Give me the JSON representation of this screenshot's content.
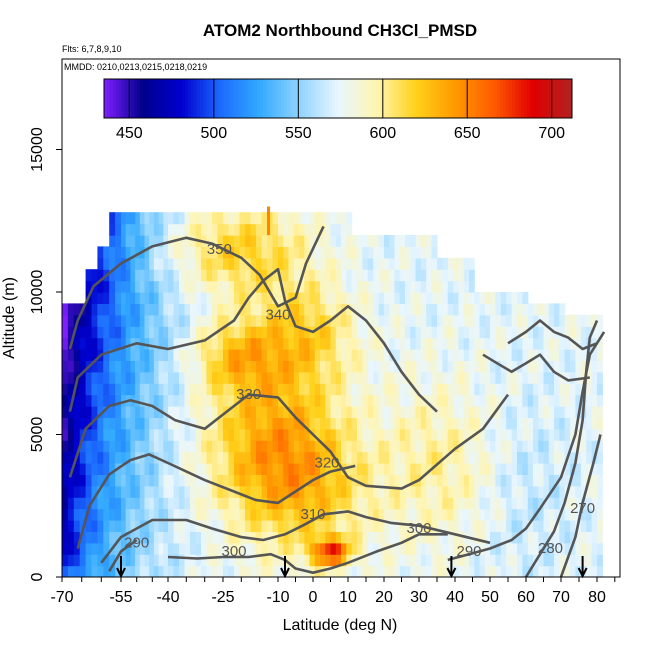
{
  "chart_data": {
    "type": "heatmap",
    "title": "ATOM2 Northbound CH3Cl_PMSD",
    "subtitle_lines": [
      "Flts: 6,7,8,9,10",
      "MMDD: 0210,0213,0215,0218,0219"
    ],
    "xlabel": "Latitude (deg N)",
    "ylabel": "Altitude (m)",
    "x_ticks": [
      "-70",
      "-55",
      "-40",
      "-25",
      "-10",
      "0",
      "10",
      "20",
      "30",
      "40",
      "50",
      "60",
      "70",
      "80"
    ],
    "y_ticks": [
      "0",
      "5000",
      "10000",
      "15000"
    ],
    "x_range_label": [
      -70,
      85
    ],
    "y_range_m": [
      0,
      17000
    ],
    "grid": false,
    "colorbar": {
      "placement": "top inset",
      "range": [
        435,
        712
      ],
      "ticks": [
        450,
        500,
        550,
        600,
        650,
        700
      ],
      "ticks_label": [
        "450",
        "500",
        "550",
        "600",
        "650",
        "700"
      ],
      "colors": [
        "#7f1fff",
        "#00008b",
        "#0000d0",
        "#1c6cff",
        "#33aaff",
        "#8fd3ff",
        "#e8f6ff",
        "#fff5b0",
        "#ffd11a",
        "#ff9900",
        "#ff5a00",
        "#e00000",
        "#b22222"
      ]
    },
    "contours": [
      {
        "label": "350",
        "x_label_deg": -26,
        "y_label_m": 11500
      },
      {
        "label": "340",
        "x_label_deg": -10,
        "y_label_m": 9200
      },
      {
        "label": "330",
        "x_label_deg": -18,
        "y_label_m": 6400
      },
      {
        "label": "320",
        "x_label_deg": 4,
        "y_label_m": 4000
      },
      {
        "label": "310",
        "x_label_deg": 0,
        "y_label_m": 2200
      },
      {
        "label": "300",
        "x_label_deg": -22,
        "y_label_m": 900
      },
      {
        "label": "300",
        "x_label_deg": 30,
        "y_label_m": 1700
      },
      {
        "label": "290",
        "x_label_deg": -50,
        "y_label_m": 1200
      },
      {
        "label": "290",
        "x_label_deg": 44,
        "y_label_m": 900
      },
      {
        "label": "280",
        "x_label_deg": 67,
        "y_label_m": 1000
      },
      {
        "label": "270",
        "x_label_deg": 76,
        "y_label_m": 2400
      }
    ],
    "flight_markers_deg": [
      -55,
      -8,
      39,
      76
    ]
  }
}
